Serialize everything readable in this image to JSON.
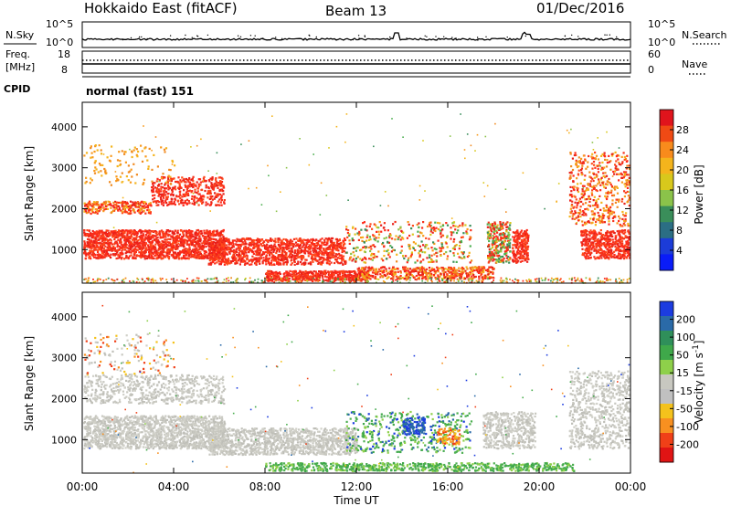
{
  "header": {
    "station": "Hokkaido East (fitACF)",
    "beam": "Beam 13",
    "date": "01/Dec/2016"
  },
  "status_panels": {
    "nsky_label": "N.Sky",
    "nsearch_label": "N.Search",
    "noise_ticks": [
      "10^5",
      "10^0"
    ],
    "freq_label_1": "Freq.",
    "freq_label_2": "[MHz]",
    "freq_ticks": [
      "18",
      "8"
    ],
    "nave_label": "Nave",
    "nave_ticks": [
      "60",
      "0"
    ],
    "cpid_label": "CPID",
    "cpid_value": "normal (fast) 151"
  },
  "chart_data": [
    {
      "type": "heatmap",
      "name": "power",
      "ylabel": "Slant Range [km]",
      "yticks": [
        1000,
        2000,
        3000,
        4000
      ],
      "ylim": [
        180,
        4600
      ],
      "xlim_hours": [
        0,
        24
      ],
      "colorbar": {
        "label": "Power [dB]",
        "ticks": [
          "28",
          "24",
          "20",
          "16",
          "12",
          "8",
          "4"
        ],
        "colors": [
          "#e0141c",
          "#f04a14",
          "#f88b1c",
          "#f4b41c",
          "#d8c81c",
          "#8bc34a",
          "#3a8e5a",
          "#2b6e84",
          "#1c3cd8",
          "#0a1cf8"
        ]
      },
      "colors": {
        "high": "#ff2a1a",
        "mid": "#f08a20",
        "low": "#4caf50"
      }
    },
    {
      "type": "heatmap",
      "name": "velocity",
      "ylabel": "Slant Range [km]",
      "yticks": [
        1000,
        2000,
        3000,
        4000
      ],
      "ylim": [
        180,
        4600
      ],
      "xlim_hours": [
        0,
        24
      ],
      "colorbar": {
        "label": "Velocity [m s",
        "label_sup": "-1",
        "label_close": "]",
        "ticks": [
          "200",
          "100",
          "50",
          "15",
          "-15",
          "-50",
          "-100",
          "-200"
        ],
        "colors": [
          "#1c3ce0",
          "#2a6aa8",
          "#2f8f5a",
          "#3fa84a",
          "#8ed04a",
          "#c8c8c0",
          "#c0c0c0",
          "#f4c21c",
          "#f89020",
          "#f04018",
          "#e01414"
        ]
      },
      "colors": {
        "ground": "#c8c8c0",
        "toward": "#4caf50",
        "away": "#f08a20"
      }
    }
  ],
  "x_axis": {
    "label": "Time UT",
    "ticks": [
      "00:00",
      "04:00",
      "08:00",
      "12:00",
      "16:00",
      "20:00",
      "00:00"
    ]
  }
}
